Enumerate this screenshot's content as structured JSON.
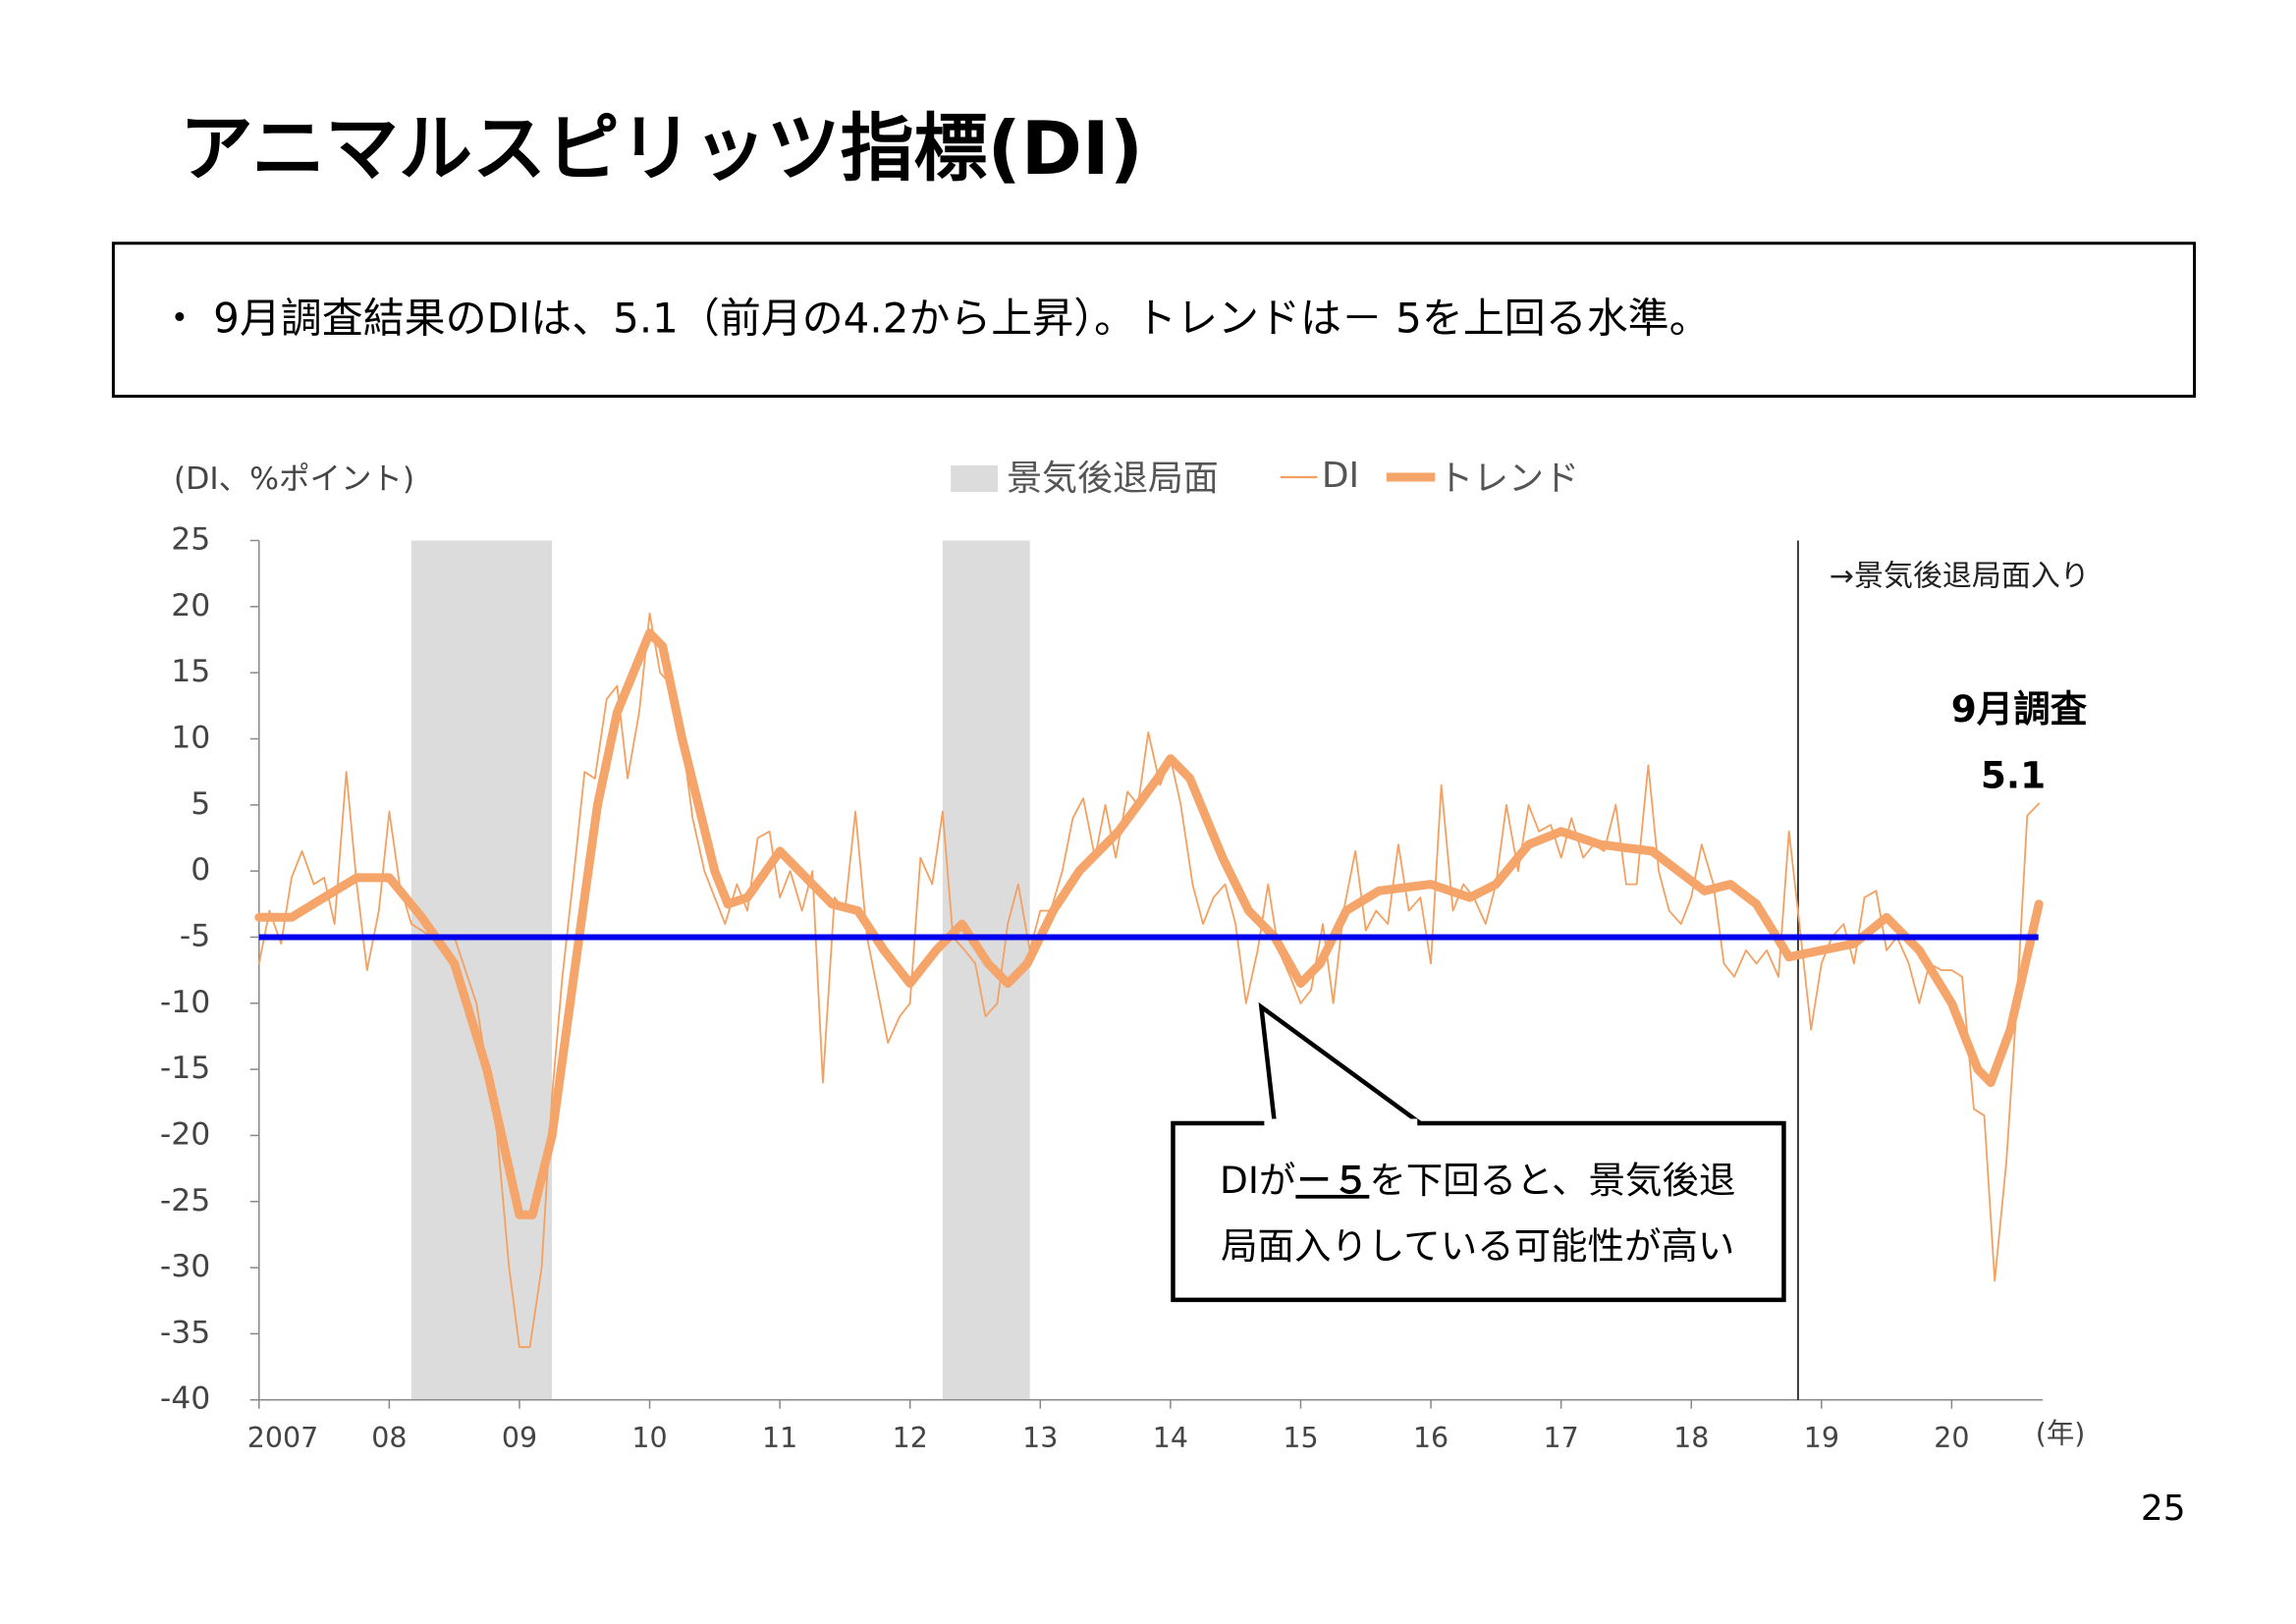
{
  "header": {
    "title": "アニマルスピリッツ指標(DI)",
    "bullet": "・ 9月調査結果のDIは、5.1（前月の4.2から上昇）。トレンドは－ 5を上回る水準。"
  },
  "callout": {
    "part1": "DIが",
    "part2": "－５",
    "part3": "を下回ると、景気後退",
    "line2": "局面入りしている可能性が高い"
  },
  "page_number": "25",
  "chart_data": {
    "type": "line",
    "y_label": "(DI、%ポイント)",
    "x_label": "(年)",
    "ylim": [
      -40,
      25
    ],
    "yticks": [
      25,
      20,
      15,
      10,
      5,
      0,
      -5,
      -10,
      -15,
      -20,
      -25,
      -30,
      -35,
      -40
    ],
    "xlim": [
      2007,
      2020.7
    ],
    "xticks": [
      {
        "value": 2007,
        "label": "2007"
      },
      {
        "value": 2008,
        "label": "08"
      },
      {
        "value": 2009,
        "label": "09"
      },
      {
        "value": 2010,
        "label": "10"
      },
      {
        "value": 2011,
        "label": "11"
      },
      {
        "value": 2012,
        "label": "12"
      },
      {
        "value": 2013,
        "label": "13"
      },
      {
        "value": 2014,
        "label": "14"
      },
      {
        "value": 2015,
        "label": "15"
      },
      {
        "value": 2016,
        "label": "16"
      },
      {
        "value": 2017,
        "label": "17"
      },
      {
        "value": 2018,
        "label": "18"
      },
      {
        "value": 2019,
        "label": "19"
      },
      {
        "value": 2020,
        "label": "20"
      }
    ],
    "recession": {
      "name": "景気後退局面",
      "color": "#dcdcdc",
      "periods": [
        [
          2008.17,
          2009.25
        ],
        [
          2012.25,
          2012.92
        ]
      ]
    },
    "recession_start": {
      "x": 2018.82,
      "label": "→景気後退局面入り"
    },
    "reference_line": {
      "value": -5,
      "color": "#0000ee"
    },
    "annotation": "9月調査",
    "series": [
      {
        "name": "DI",
        "color": "#f3a060",
        "width": 1.2,
        "x": [
          2007.0,
          2007.08,
          2007.17,
          2007.25,
          2007.33,
          2007.42,
          2007.5,
          2007.58,
          2007.67,
          2007.75,
          2007.83,
          2007.92,
          2008.0,
          2008.08,
          2008.17,
          2008.33,
          2008.5,
          2008.67,
          2008.83,
          2008.92,
          2009.0,
          2009.08,
          2009.17,
          2009.25,
          2009.33,
          2009.42,
          2009.5,
          2009.58,
          2009.67,
          2009.75,
          2009.83,
          2009.92,
          2010.0,
          2010.08,
          2010.17,
          2010.25,
          2010.33,
          2010.42,
          2010.5,
          2010.58,
          2010.67,
          2010.75,
          2010.83,
          2010.92,
          2011.0,
          2011.08,
          2011.17,
          2011.25,
          2011.33,
          2011.42,
          2011.5,
          2011.58,
          2011.67,
          2011.75,
          2011.83,
          2011.92,
          2012.0,
          2012.08,
          2012.17,
          2012.25,
          2012.33,
          2012.42,
          2012.5,
          2012.58,
          2012.67,
          2012.75,
          2012.83,
          2012.92,
          2013.0,
          2013.08,
          2013.17,
          2013.25,
          2013.33,
          2013.42,
          2013.5,
          2013.58,
          2013.67,
          2013.75,
          2013.83,
          2013.92,
          2014.0,
          2014.08,
          2014.17,
          2014.25,
          2014.33,
          2014.42,
          2014.5,
          2014.58,
          2014.67,
          2014.75,
          2014.83,
          2014.92,
          2015.0,
          2015.08,
          2015.17,
          2015.25,
          2015.33,
          2015.42,
          2015.5,
          2015.58,
          2015.67,
          2015.75,
          2015.83,
          2015.92,
          2016.0,
          2016.08,
          2016.17,
          2016.25,
          2016.33,
          2016.42,
          2016.5,
          2016.58,
          2016.67,
          2016.75,
          2016.83,
          2016.92,
          2017.0,
          2017.08,
          2017.17,
          2017.25,
          2017.33,
          2017.42,
          2017.5,
          2017.58,
          2017.67,
          2017.75,
          2017.83,
          2017.92,
          2018.0,
          2018.08,
          2018.17,
          2018.25,
          2018.33,
          2018.42,
          2018.5,
          2018.58,
          2018.67,
          2018.75,
          2018.83,
          2018.92,
          2019.0,
          2019.08,
          2019.17,
          2019.25,
          2019.33,
          2019.42,
          2019.5,
          2019.58,
          2019.67,
          2019.75,
          2019.83,
          2019.92,
          2020.0,
          2020.08,
          2020.17,
          2020.25,
          2020.33,
          2020.42,
          2020.5,
          2020.58,
          2020.67
        ],
        "values": [
          -7,
          -3,
          -5.5,
          -0.5,
          1.5,
          -1,
          -0.5,
          -4,
          7.5,
          -1,
          -7.5,
          -3,
          4.5,
          -1,
          -4,
          -5,
          -5,
          -10,
          -20,
          -30,
          -36,
          -36,
          -30,
          -17,
          -8,
          0,
          7.5,
          7,
          13,
          14,
          7,
          12,
          19.5,
          15,
          14,
          10,
          4,
          0,
          -2,
          -4,
          -1,
          -3,
          2.5,
          3,
          -2,
          0,
          -3,
          0,
          -16,
          -2,
          -3,
          4.5,
          -5,
          -9,
          -13,
          -11,
          -10,
          1,
          -1,
          4.5,
          -5,
          -6,
          -7,
          -11,
          -10,
          -4,
          -1,
          -6,
          -3,
          -3,
          0,
          4,
          5.5,
          1,
          5,
          1,
          6,
          5,
          10.5,
          6.5,
          8.5,
          5,
          -1,
          -4,
          -2,
          -1,
          -4,
          -10,
          -6,
          -1,
          -6,
          -8,
          -10,
          -9,
          -4,
          -10,
          -3,
          1.5,
          -4.5,
          -3,
          -4,
          2,
          -3,
          -2,
          -7,
          6.5,
          -3,
          -1,
          -2,
          -4,
          -1,
          5,
          0,
          5,
          3,
          3.5,
          1,
          4,
          1,
          2,
          1.5,
          5,
          -1,
          -1,
          8,
          0,
          -3,
          -4,
          -2,
          2,
          -1,
          -7,
          -8,
          -6,
          -7,
          -6,
          -8,
          3,
          -4,
          -12,
          -7,
          -5,
          -4,
          -7,
          -2,
          -1.5,
          -6,
          -5,
          -7,
          -10,
          -7,
          -7.5,
          -7.5,
          -8,
          -18,
          -18.5,
          -31,
          -22,
          -10,
          4.2,
          5.1
        ]
      },
      {
        "name": "トレンド",
        "color": "#f5a46a",
        "width": 6,
        "x": [
          2007.0,
          2007.25,
          2007.5,
          2007.75,
          2008.0,
          2008.25,
          2008.5,
          2008.75,
          2009.0,
          2009.1,
          2009.25,
          2009.5,
          2009.6,
          2009.75,
          2010.0,
          2010.1,
          2010.25,
          2010.5,
          2010.6,
          2010.75,
          2011.0,
          2011.2,
          2011.4,
          2011.6,
          2011.8,
          2012.0,
          2012.2,
          2012.4,
          2012.6,
          2012.75,
          2012.9,
          2013.1,
          2013.3,
          2013.6,
          2013.9,
          2014.0,
          2014.15,
          2014.4,
          2014.6,
          2014.8,
          2015.0,
          2015.15,
          2015.35,
          2015.6,
          2016.0,
          2016.3,
          2016.5,
          2016.75,
          2017.0,
          2017.3,
          2017.7,
          2017.9,
          2018.1,
          2018.3,
          2018.5,
          2018.75,
          2019.0,
          2019.25,
          2019.5,
          2019.75,
          2020.0,
          2020.2,
          2020.3,
          2020.45,
          2020.67
        ],
        "values": [
          -3.5,
          -3.5,
          -2,
          -0.5,
          -0.5,
          -3.5,
          -7,
          -15,
          -26,
          -26,
          -20,
          -2,
          5,
          12,
          18,
          17,
          10,
          0,
          -2.5,
          -2,
          1.5,
          -0.5,
          -2.5,
          -3,
          -6,
          -8.5,
          -6,
          -4,
          -7,
          -8.5,
          -7,
          -3,
          0,
          3,
          7,
          8.5,
          7,
          1,
          -3,
          -5,
          -8.5,
          -7,
          -3,
          -1.5,
          -1,
          -2,
          -1,
          2,
          3,
          2,
          1.5,
          0,
          -1.5,
          -1,
          -2.5,
          -6.5,
          -6,
          -5.5,
          -3.5,
          -6,
          -10,
          -15,
          -16,
          -12,
          -2.5
        ]
      }
    ]
  }
}
